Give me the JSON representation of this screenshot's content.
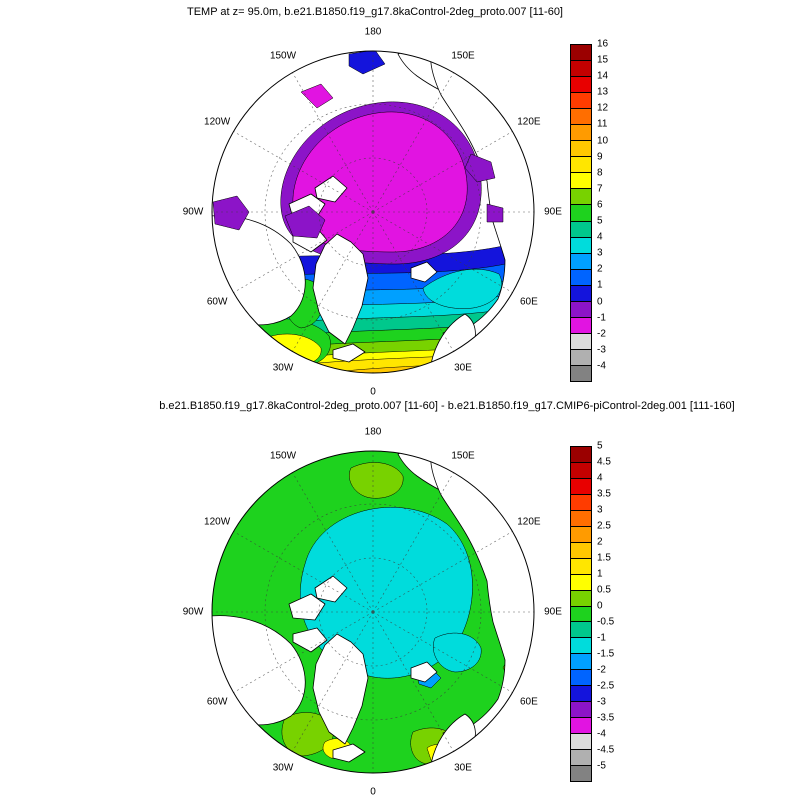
{
  "figure": {
    "background": "#ffffff"
  },
  "palette": [
    "#9b0000",
    "#c30000",
    "#e80000",
    "#ff3c00",
    "#ff6e00",
    "#ff9b00",
    "#ffc800",
    "#ffe600",
    "#ffff00",
    "#78d200",
    "#1ed21e",
    "#00c88c",
    "#00dcdc",
    "#00a0ff",
    "#0064ff",
    "#1414dc",
    "#8c14c8",
    "#e114e1",
    "#dcdcdc",
    "#b0b0b0",
    "#828282"
  ],
  "chart_data": [
    {
      "type": "filled-contour-map",
      "panel": "top",
      "title": "TEMP at z= 95.0m, b.e21.B1850.f19_g17.8kaControl-2deg_proto.007 [11-60]",
      "projection": "north-polar-stereographic",
      "grid": "dashed meridians every 30 deg with two dashed latitude circles",
      "ring_labels": [
        "180",
        "150E",
        "120E",
        "90E",
        "60E",
        "30E",
        "0",
        "30W",
        "60W",
        "90W",
        "120W",
        "150W"
      ],
      "colorbar": {
        "orientation": "vertical",
        "position": "right",
        "ticks": [
          "16",
          "15",
          "14",
          "13",
          "12",
          "11",
          "10",
          "9",
          "8",
          "7",
          "6",
          "5",
          "4",
          "3",
          "2",
          "1",
          "0",
          "-1",
          "-2",
          "-3",
          "-4"
        ]
      },
      "field_summary": "Ocean temperature at 95 m: central Arctic basin -2 to -1 (magenta) ringed by -1 to 0 (violet); Atlantic sector warms southward through dark blue, blue, cyan, green and yellow to 10-12 (orange) at the southern map edge; warm tongue enters the Barents Sea; green-yellow pocket in the Labrador Sea; land shown white with coastlines."
    },
    {
      "type": "filled-contour-map",
      "panel": "bottom",
      "title": "b.e21.B1850.f19_g17.8kaControl-2deg_proto.007 [11-60] - b.e21.B1850.f19_g17.CMIP6-piControl-2deg.001 [111-160]",
      "projection": "north-polar-stereographic",
      "grid": "dashed meridians every 30 deg with two dashed latitude circles",
      "ring_labels": [
        "180",
        "150E",
        "120E",
        "90E",
        "60E",
        "30E",
        "0",
        "30W",
        "60W",
        "90W",
        "120W",
        "150W"
      ],
      "colorbar": {
        "orientation": "vertical",
        "position": "right",
        "ticks": [
          "5",
          "4.5",
          "4",
          "3.5",
          "3",
          "2.5",
          "2",
          "1.5",
          "1",
          "0.5",
          "0",
          "-0.5",
          "-1",
          "-1.5",
          "-2",
          "-2.5",
          "-3",
          "-3.5",
          "-4",
          "-4.5",
          "-5"
        ]
      },
      "field_summary": "Difference field: most of the domain near 0 to 0.5 (green) with a broad slightly negative (cyan) anomaly over the central Arctic; scattered warmer green patches and small yellow anomalies near the southern boundary; land shown white with coastlines."
    }
  ]
}
